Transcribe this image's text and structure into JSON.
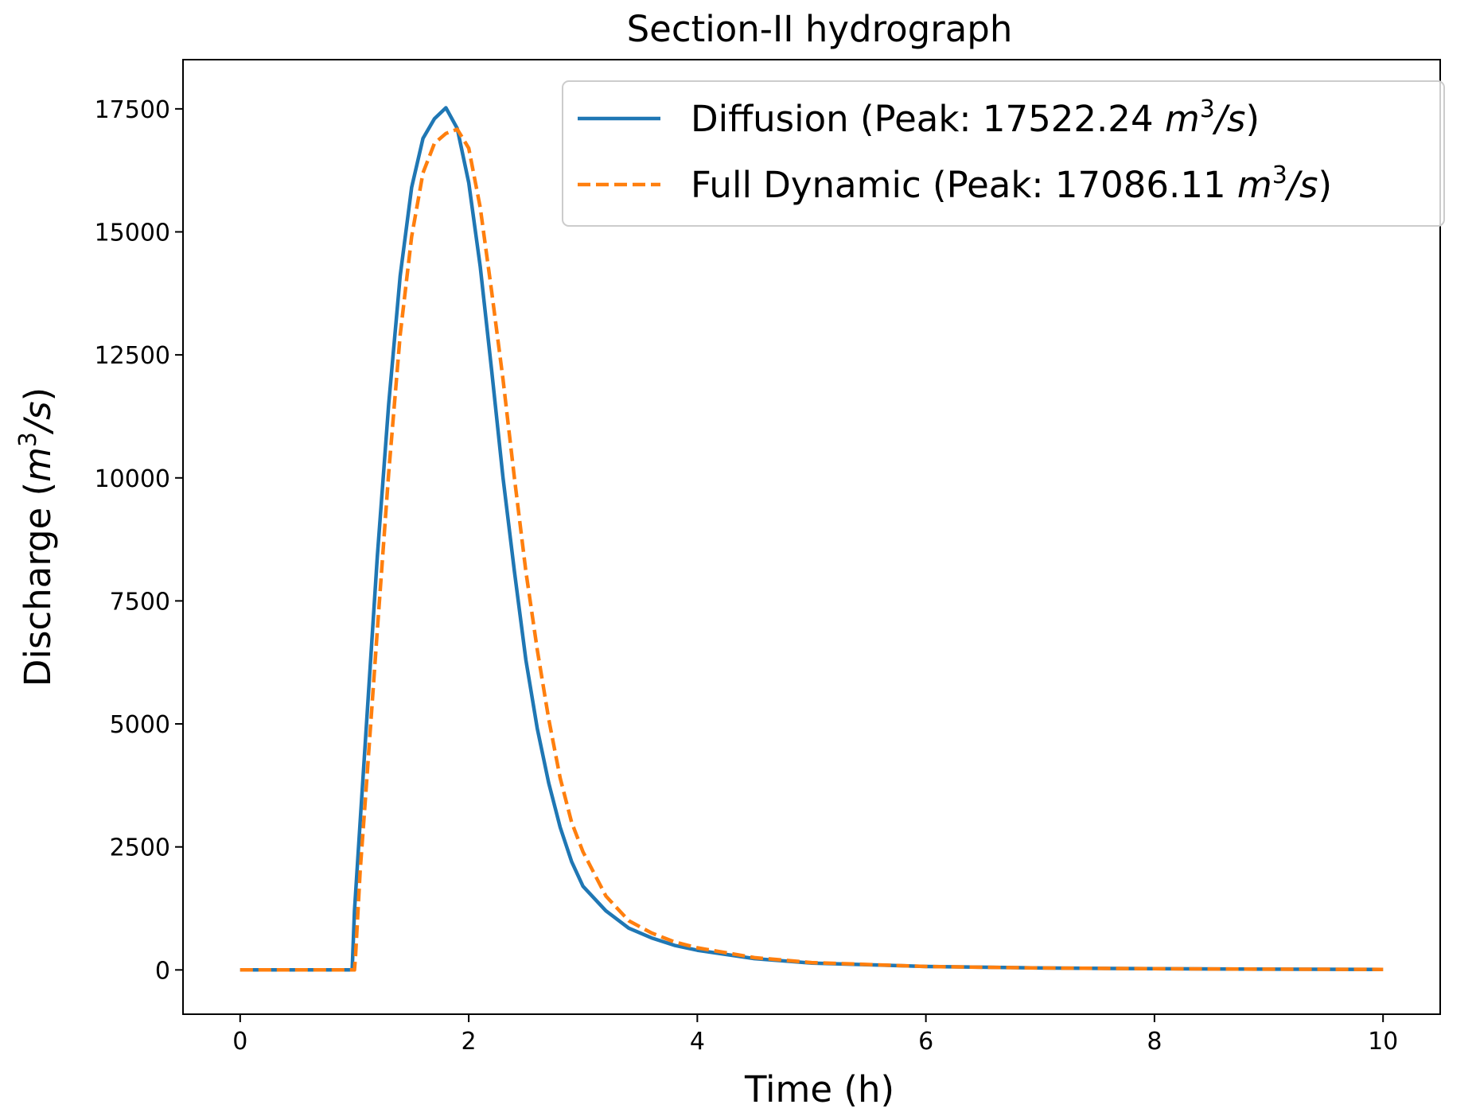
{
  "chart_data": {
    "type": "line",
    "title": "Section-II hydrograph",
    "xlabel": "Time (h)",
    "ylabel": "Discharge (m³/s)",
    "xlim": [
      -0.5,
      10.5
    ],
    "ylim": [
      -900,
      18500
    ],
    "x_ticks": [
      0,
      2,
      4,
      6,
      8,
      10
    ],
    "y_ticks": [
      0,
      2500,
      5000,
      7500,
      10000,
      12500,
      15000,
      17500
    ],
    "grid": false,
    "legend_position": "upper right",
    "series": [
      {
        "name": "Diffusion (Peak: 17522.24 m³/s)",
        "color": "#1f77b4",
        "style": "solid",
        "peak": 17522.24,
        "x": [
          0,
          0.97,
          0.98,
          1.0,
          1.05,
          1.1,
          1.2,
          1.3,
          1.4,
          1.5,
          1.6,
          1.7,
          1.8,
          1.9,
          2.0,
          2.1,
          2.2,
          2.3,
          2.4,
          2.5,
          2.6,
          2.7,
          2.8,
          2.9,
          3.0,
          3.2,
          3.4,
          3.6,
          3.8,
          4.0,
          4.5,
          5.0,
          6.0,
          7.0,
          8.0,
          9.0,
          10.0
        ],
        "y": [
          0,
          0,
          0,
          1200,
          3000,
          4800,
          8400,
          11500,
          14100,
          15900,
          16900,
          17300,
          17522,
          17100,
          16000,
          14300,
          12200,
          10000,
          8100,
          6300,
          4900,
          3800,
          2900,
          2200,
          1700,
          1200,
          850,
          650,
          500,
          400,
          230,
          140,
          70,
          40,
          25,
          15,
          10
        ]
      },
      {
        "name": "Full Dynamic  (Peak: 17086.11 m³/s)",
        "color": "#ff7f0e",
        "style": "dashed",
        "peak": 17086.11,
        "x": [
          0,
          1.0,
          1.01,
          1.05,
          1.1,
          1.2,
          1.3,
          1.4,
          1.5,
          1.6,
          1.7,
          1.8,
          1.9,
          2.0,
          2.1,
          2.2,
          2.3,
          2.4,
          2.5,
          2.6,
          2.7,
          2.8,
          2.9,
          3.0,
          3.2,
          3.4,
          3.6,
          3.8,
          4.0,
          4.5,
          5.0,
          6.0,
          7.0,
          8.0,
          9.0,
          10.0
        ],
        "y": [
          0,
          0,
          300,
          2000,
          3600,
          6900,
          10100,
          12900,
          14900,
          16200,
          16800,
          17000,
          17086,
          16700,
          15500,
          13800,
          12000,
          10000,
          8100,
          6500,
          5100,
          3900,
          3000,
          2400,
          1500,
          1000,
          750,
          570,
          450,
          250,
          150,
          70,
          40,
          25,
          15,
          10
        ]
      }
    ],
    "legend": [
      {
        "label_text": "Diffusion (Peak: 17522.24 ",
        "unit_base": "m",
        "unit_sup": "3",
        "unit_tail": "/s",
        "close": ")"
      },
      {
        "label_text": "Full Dynamic  (Peak: 17086.11 ",
        "unit_base": "m",
        "unit_sup": "3",
        "unit_tail": "/s",
        "close": ")"
      }
    ],
    "ylabel_parts": {
      "text": "Discharge (",
      "unit_base": "m",
      "unit_sup": "3",
      "unit_tail": "/s",
      "close": ")"
    }
  }
}
